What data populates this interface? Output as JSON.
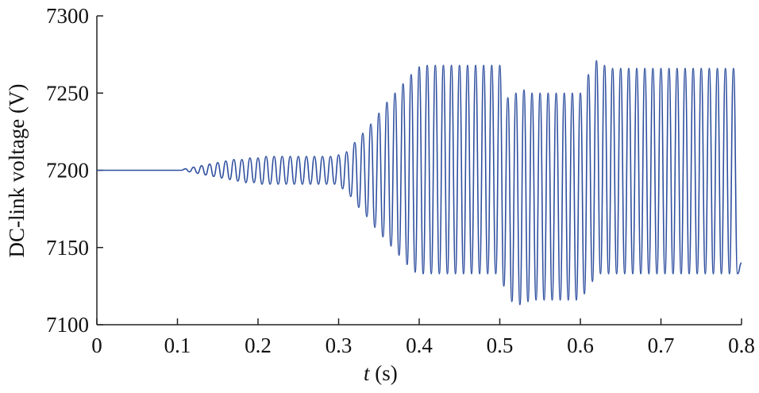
{
  "chart_data": {
    "type": "line",
    "xlabel": "t (s)",
    "ylabel": "DC-link voltage (V)",
    "xlim": [
      0,
      0.8
    ],
    "xticks": [
      0,
      0.1,
      0.2,
      0.3,
      0.4,
      0.5,
      0.6,
      0.7,
      0.8
    ],
    "ylim": [
      7100,
      7300
    ],
    "yticks": [
      7100,
      7150,
      7200,
      7250,
      7300
    ],
    "grid": false,
    "x": [
      0,
      0.105,
      0.11,
      0.115,
      0.12,
      0.125,
      0.13,
      0.135,
      0.14,
      0.145,
      0.15,
      0.155,
      0.16,
      0.165,
      0.17,
      0.175,
      0.18,
      0.185,
      0.19,
      0.195,
      0.2,
      0.205,
      0.21,
      0.215,
      0.22,
      0.225,
      0.23,
      0.235,
      0.24,
      0.245,
      0.25,
      0.255,
      0.26,
      0.265,
      0.27,
      0.275,
      0.28,
      0.285,
      0.29,
      0.295,
      0.3,
      0.305,
      0.31,
      0.315,
      0.32,
      0.325,
      0.33,
      0.335,
      0.34,
      0.345,
      0.35,
      0.355,
      0.36,
      0.365,
      0.37,
      0.375,
      0.38,
      0.385,
      0.39,
      0.395,
      0.4,
      0.405,
      0.41,
      0.415,
      0.42,
      0.425,
      0.43,
      0.435,
      0.44,
      0.445,
      0.45,
      0.455,
      0.46,
      0.465,
      0.47,
      0.475,
      0.48,
      0.485,
      0.49,
      0.495,
      0.5,
      0.505,
      0.51,
      0.515,
      0.52,
      0.525,
      0.53,
      0.535,
      0.54,
      0.545,
      0.55,
      0.555,
      0.56,
      0.565,
      0.57,
      0.575,
      0.58,
      0.585,
      0.59,
      0.595,
      0.6,
      0.605,
      0.61,
      0.615,
      0.62,
      0.625,
      0.63,
      0.635,
      0.64,
      0.645,
      0.65,
      0.655,
      0.66,
      0.665,
      0.67,
      0.675,
      0.68,
      0.685,
      0.69,
      0.695,
      0.7,
      0.705,
      0.71,
      0.715,
      0.72,
      0.725,
      0.73,
      0.735,
      0.74,
      0.745,
      0.75,
      0.755,
      0.76,
      0.765,
      0.77,
      0.775,
      0.78,
      0.785,
      0.79,
      0.795,
      0.8
    ],
    "series": [
      {
        "color": "#2f4f9f",
        "values": [
          7200,
          7200,
          7201,
          7199,
          7202,
          7198,
          7203,
          7197,
          7204,
          7196,
          7205,
          7195,
          7206,
          7194,
          7207,
          7193,
          7207,
          7192,
          7208,
          7192,
          7208,
          7191,
          7209,
          7191,
          7209,
          7191,
          7209,
          7191,
          7209,
          7191,
          7209,
          7191,
          7209,
          7191,
          7209,
          7191,
          7209,
          7191,
          7209,
          7191,
          7210,
          7188,
          7212,
          7183,
          7218,
          7176,
          7224,
          7170,
          7230,
          7163,
          7237,
          7157,
          7244,
          7151,
          7250,
          7145,
          7256,
          7139,
          7262,
          7134,
          7267,
          7133,
          7268,
          7133,
          7268,
          7133,
          7268,
          7133,
          7268,
          7133,
          7268,
          7133,
          7268,
          7133,
          7268,
          7133,
          7268,
          7133,
          7268,
          7133,
          7268,
          7125,
          7247,
          7115,
          7250,
          7113,
          7252,
          7115,
          7250,
          7116,
          7250,
          7116,
          7250,
          7116,
          7250,
          7116,
          7250,
          7116,
          7250,
          7116,
          7250,
          7120,
          7262,
          7128,
          7271,
          7133,
          7268,
          7133,
          7266,
          7133,
          7266,
          7133,
          7266,
          7133,
          7266,
          7133,
          7266,
          7133,
          7266,
          7133,
          7266,
          7133,
          7266,
          7133,
          7266,
          7133,
          7266,
          7133,
          7266,
          7133,
          7266,
          7133,
          7266,
          7133,
          7266,
          7133,
          7266,
          7133,
          7266,
          7133,
          7140
        ]
      }
    ]
  }
}
